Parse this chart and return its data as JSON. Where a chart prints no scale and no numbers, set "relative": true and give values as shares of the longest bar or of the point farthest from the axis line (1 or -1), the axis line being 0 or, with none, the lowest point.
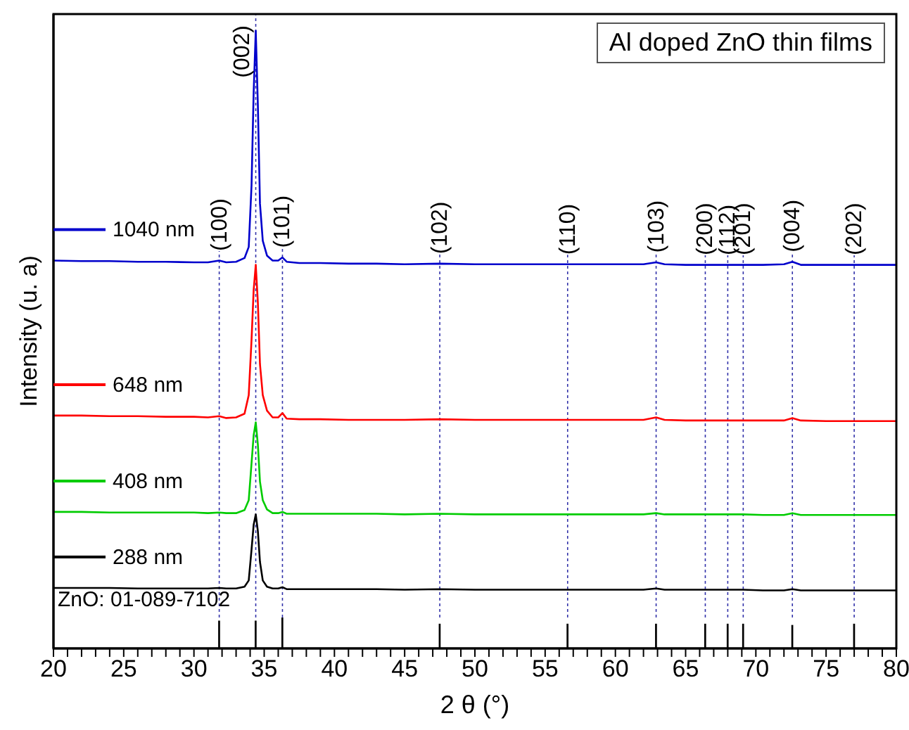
{
  "chart_data": {
    "type": "line",
    "title": "Al doped ZnO thin films",
    "xlabel": "2 θ (°)",
    "ylabel": "Intensity (u. a)",
    "relative": true,
    "legend": "left",
    "marker": "none",
    "line_style": "solid",
    "xlim": [
      20,
      80
    ],
    "xticks": [
      20,
      {
        "value": 21,
        "label": null
      },
      {
        "value": 22,
        "label": null
      },
      {
        "value": 23,
        "label": null
      },
      {
        "value": 24,
        "label": null
      },
      25,
      {
        "value": 26,
        "label": null
      },
      {
        "value": 27,
        "label": null
      },
      {
        "value": 28,
        "label": null
      },
      {
        "value": 29,
        "label": null
      },
      30,
      {
        "value": 31,
        "label": null
      },
      {
        "value": 32,
        "label": null
      },
      {
        "value": 33,
        "label": null
      },
      {
        "value": 34,
        "label": null
      },
      35,
      {
        "value": 36,
        "label": null
      },
      {
        "value": 37,
        "label": null
      },
      {
        "value": 38,
        "label": null
      },
      {
        "value": 39,
        "label": null
      },
      40,
      {
        "value": 41,
        "label": null
      },
      {
        "value": 42,
        "label": null
      },
      {
        "value": 43,
        "label": null
      },
      {
        "value": 44,
        "label": null
      },
      45,
      {
        "value": 46,
        "label": null
      },
      {
        "value": 47,
        "label": null
      },
      {
        "value": 48,
        "label": null
      },
      {
        "value": 49,
        "label": null
      },
      50,
      {
        "value": 51,
        "label": null
      },
      {
        "value": 52,
        "label": null
      },
      {
        "value": 53,
        "label": null
      },
      {
        "value": 54,
        "label": null
      },
      55,
      {
        "value": 56,
        "label": null
      },
      {
        "value": 57,
        "label": null
      },
      {
        "value": 58,
        "label": null
      },
      {
        "value": 59,
        "label": null
      },
      60,
      {
        "value": 61,
        "label": null
      },
      {
        "value": 62,
        "label": null
      },
      {
        "value": 63,
        "label": null
      },
      {
        "value": 64,
        "label": null
      },
      65,
      {
        "value": 66,
        "label": null
      },
      {
        "value": 67,
        "label": null
      },
      {
        "value": 68,
        "label": null
      },
      {
        "value": 69,
        "label": null
      },
      70,
      {
        "value": 71,
        "label": null
      },
      {
        "value": 72,
        "label": null
      },
      {
        "value": 73,
        "label": null
      },
      {
        "value": 74,
        "label": null
      },
      75,
      {
        "value": 76,
        "label": null
      },
      {
        "value": 77,
        "label": null
      },
      {
        "value": 78,
        "label": null
      },
      {
        "value": 79,
        "label": null
      },
      80
    ],
    "series": [
      {
        "name": "1040 nm",
        "color": "#0000cc",
        "x": [
          20,
          22,
          24,
          26,
          28,
          30,
          31,
          31.8,
          32.3,
          33,
          33.6,
          33.9,
          34.1,
          34.25,
          34.4,
          34.55,
          34.7,
          34.9,
          35.2,
          35.6,
          36,
          36.3,
          36.6,
          37.5,
          39,
          41,
          43,
          45,
          47.5,
          50,
          52,
          54,
          56.6,
          58,
          60,
          62,
          62.9,
          63.5,
          65,
          66.4,
          68,
          69.1,
          70.5,
          72,
          72.6,
          73.2,
          75,
          77,
          78.5,
          80
        ],
        "values": [
          0.628,
          0.627,
          0.627,
          0.626,
          0.626,
          0.625,
          0.625,
          0.628,
          0.625,
          0.626,
          0.632,
          0.65,
          0.75,
          0.9,
          1.0,
          0.88,
          0.72,
          0.66,
          0.636,
          0.628,
          0.628,
          0.633,
          0.626,
          0.624,
          0.624,
          0.623,
          0.623,
          0.622,
          0.623,
          0.622,
          0.622,
          0.622,
          0.622,
          0.622,
          0.622,
          0.622,
          0.625,
          0.622,
          0.621,
          0.621,
          0.621,
          0.621,
          0.621,
          0.622,
          0.626,
          0.621,
          0.621,
          0.621,
          0.621,
          0.621
        ]
      },
      {
        "name": "648 nm",
        "color": "#ff0000",
        "x": [
          20,
          22,
          24,
          26,
          28,
          30,
          31,
          31.8,
          32.3,
          33,
          33.6,
          33.9,
          34.1,
          34.25,
          34.4,
          34.55,
          34.7,
          34.9,
          35.2,
          35.6,
          36,
          36.3,
          36.6,
          37.5,
          39,
          41,
          43,
          45,
          47.5,
          50,
          52,
          54,
          56.6,
          58,
          60,
          62,
          62.9,
          63.5,
          65,
          66.4,
          68,
          69.1,
          70.5,
          72,
          72.6,
          73.2,
          75,
          77,
          78.5,
          80
        ],
        "values": [
          0.377,
          0.377,
          0.376,
          0.376,
          0.375,
          0.375,
          0.374,
          0.376,
          0.373,
          0.374,
          0.38,
          0.41,
          0.5,
          0.58,
          0.621,
          0.56,
          0.46,
          0.41,
          0.385,
          0.374,
          0.374,
          0.381,
          0.372,
          0.371,
          0.371,
          0.37,
          0.37,
          0.37,
          0.371,
          0.37,
          0.37,
          0.37,
          0.37,
          0.37,
          0.37,
          0.37,
          0.374,
          0.37,
          0.369,
          0.369,
          0.369,
          0.369,
          0.369,
          0.369,
          0.373,
          0.369,
          0.368,
          0.368,
          0.368,
          0.368
        ]
      },
      {
        "name": "408 nm",
        "color": "#00cc00",
        "x": [
          20,
          22,
          24,
          26,
          28,
          30,
          31,
          31.8,
          32.3,
          33,
          33.6,
          33.9,
          34.1,
          34.25,
          34.4,
          34.55,
          34.7,
          34.9,
          35.2,
          35.6,
          36,
          36.3,
          36.6,
          37.5,
          39,
          41,
          43,
          45,
          47.5,
          50,
          52,
          54,
          56.6,
          58,
          60,
          62,
          62.9,
          63.5,
          65,
          66.4,
          68,
          69.1,
          70.5,
          72,
          72.6,
          73.2,
          75,
          77,
          78.5,
          80
        ],
        "values": [
          0.221,
          0.221,
          0.22,
          0.22,
          0.22,
          0.22,
          0.219,
          0.22,
          0.219,
          0.219,
          0.224,
          0.24,
          0.3,
          0.345,
          0.366,
          0.33,
          0.27,
          0.24,
          0.225,
          0.219,
          0.219,
          0.221,
          0.218,
          0.218,
          0.218,
          0.218,
          0.218,
          0.217,
          0.218,
          0.217,
          0.217,
          0.217,
          0.217,
          0.217,
          0.217,
          0.217,
          0.219,
          0.217,
          0.217,
          0.217,
          0.217,
          0.217,
          0.216,
          0.216,
          0.219,
          0.216,
          0.216,
          0.216,
          0.216,
          0.216
        ]
      },
      {
        "name": "288 nm",
        "color": "#000000",
        "x": [
          20,
          22,
          24,
          26,
          28,
          30,
          31,
          31.8,
          32.3,
          33,
          33.6,
          33.9,
          34.1,
          34.25,
          34.4,
          34.55,
          34.7,
          34.9,
          35.2,
          35.6,
          36,
          36.3,
          36.6,
          37.5,
          39,
          41,
          43,
          45,
          47.5,
          50,
          52,
          54,
          56.6,
          58,
          60,
          62,
          62.9,
          63.5,
          65,
          66.4,
          68,
          69.1,
          70.5,
          72,
          72.6,
          73.2,
          75,
          77,
          78.5,
          80
        ],
        "values": [
          0.098,
          0.098,
          0.098,
          0.097,
          0.097,
          0.097,
          0.097,
          0.098,
          0.097,
          0.097,
          0.1,
          0.11,
          0.16,
          0.2,
          0.217,
          0.19,
          0.14,
          0.11,
          0.1,
          0.097,
          0.097,
          0.099,
          0.096,
          0.096,
          0.096,
          0.096,
          0.096,
          0.095,
          0.096,
          0.095,
          0.095,
          0.095,
          0.095,
          0.095,
          0.095,
          0.095,
          0.097,
          0.095,
          0.095,
          0.095,
          0.095,
          0.095,
          0.094,
          0.094,
          0.096,
          0.094,
          0.094,
          0.094,
          0.094,
          0.094
        ]
      },
      {
        "type": "bar",
        "color": "#000000",
        "x": [
          31.8,
          34.4,
          36.3,
          47.5,
          56.6,
          62.9,
          66.4,
          68.0,
          69.1,
          72.6,
          77.0
        ],
        "values": [
          0.045,
          0.045,
          0.05,
          0.04,
          0.04,
          0.04,
          0.04,
          0.04,
          0.04,
          0.038,
          0.04
        ]
      }
    ],
    "ref_lines": [
      {
        "axis": "x",
        "value": 31.8,
        "color": "#3333aa",
        "line_style": "dotted"
      },
      {
        "axis": "x",
        "value": 34.4,
        "color": "#3333aa",
        "line_style": "dotted"
      },
      {
        "axis": "x",
        "value": 36.3,
        "color": "#3333aa",
        "line_style": "dotted"
      },
      {
        "axis": "x",
        "value": 47.5,
        "color": "#3333aa",
        "line_style": "dotted"
      },
      {
        "axis": "x",
        "value": 56.6,
        "color": "#3333aa",
        "line_style": "dotted"
      },
      {
        "axis": "x",
        "value": 62.9,
        "color": "#3333aa",
        "line_style": "dotted"
      },
      {
        "axis": "x",
        "value": 66.4,
        "color": "#3333aa",
        "line_style": "dotted"
      },
      {
        "axis": "x",
        "value": 68.0,
        "color": "#3333aa",
        "line_style": "dotted"
      },
      {
        "axis": "x",
        "value": 69.1,
        "color": "#3333aa",
        "line_style": "dotted"
      },
      {
        "axis": "x",
        "value": 72.6,
        "color": "#3333aa",
        "line_style": "dotted"
      },
      {
        "axis": "x",
        "value": 77.0,
        "color": "#3333aa",
        "line_style": "dotted"
      }
    ],
    "annotations": [
      "(100)",
      "(002)",
      "(101)",
      "(102)",
      "(110)",
      "(103)",
      "(200)",
      "(112)",
      "(201)",
      "(004)",
      "(202)",
      "ZnO: 01-089-7102"
    ]
  }
}
